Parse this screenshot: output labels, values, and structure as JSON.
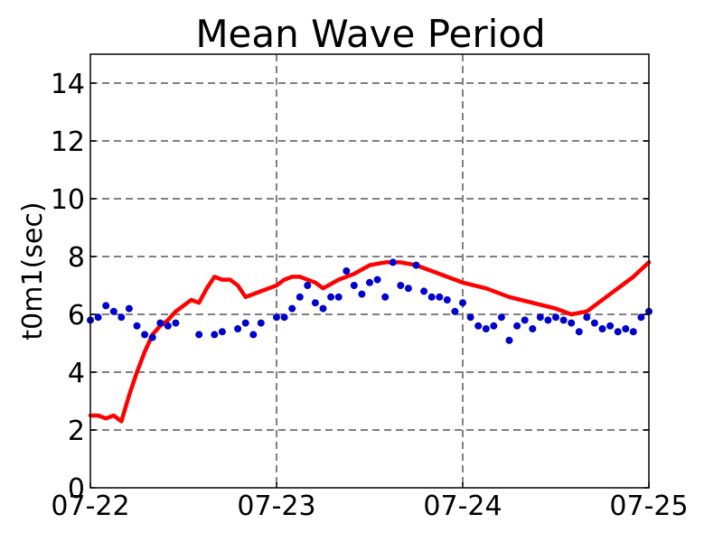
{
  "chart_data": {
    "type": "line",
    "title": "Mean Wave Period",
    "ylabel": "t0m1(sec)",
    "xlabel": "",
    "x_ticks": [
      "07-22",
      "07-23",
      "07-24",
      "07-25"
    ],
    "xlim": [
      "07-22 00:00",
      "07-25 00:00"
    ],
    "ylim": [
      0,
      15
    ],
    "y_ticks": [
      0,
      2,
      4,
      6,
      8,
      10,
      12,
      14
    ],
    "grid": true,
    "colors": {
      "model": "#ff0000",
      "observed": "#0000cc"
    },
    "series": [
      {
        "style": "line",
        "x": [
          "07-22 00:00",
          "07-22 01:00",
          "07-22 02:00",
          "07-22 03:00",
          "07-22 04:00",
          "07-22 05:00",
          "07-22 06:00",
          "07-22 07:00",
          "07-22 08:00",
          "07-22 09:00",
          "07-22 10:00",
          "07-22 11:00",
          "07-22 12:00",
          "07-22 13:00",
          "07-22 14:00",
          "07-22 15:00",
          "07-22 16:00",
          "07-22 17:00",
          "07-22 18:00",
          "07-22 19:00",
          "07-22 20:00",
          "07-22 21:00",
          "07-22 22:00",
          "07-22 23:00",
          "07-23 00:00",
          "07-23 01:00",
          "07-23 02:00",
          "07-23 03:00",
          "07-23 05:00",
          "07-23 06:00",
          "07-23 08:00",
          "07-23 10:00",
          "07-23 12:00",
          "07-23 14:00",
          "07-23 16:00",
          "07-23 18:00",
          "07-23 20:00",
          "07-23 22:00",
          "07-24 00:00",
          "07-24 03:00",
          "07-24 06:00",
          "07-24 09:00",
          "07-24 12:00",
          "07-24 14:00",
          "07-24 16:00",
          "07-24 18:00",
          "07-24 20:00",
          "07-24 22:00",
          "07-25 00:00"
        ],
        "y": [
          2.5,
          2.5,
          2.4,
          2.5,
          2.3,
          3.2,
          4.0,
          4.7,
          5.3,
          5.6,
          5.8,
          6.1,
          6.3,
          6.5,
          6.4,
          6.9,
          7.3,
          7.2,
          7.2,
          7.0,
          6.6,
          6.7,
          6.8,
          6.9,
          7.0,
          7.2,
          7.3,
          7.3,
          7.1,
          6.9,
          7.2,
          7.4,
          7.7,
          7.8,
          7.8,
          7.7,
          7.5,
          7.3,
          7.1,
          6.9,
          6.6,
          6.4,
          6.2,
          6.0,
          6.1,
          6.5,
          6.9,
          7.3,
          7.8
        ]
      },
      {
        "style": "scatter",
        "x": [
          "07-22 00:00",
          "07-22 01:00",
          "07-22 02:00",
          "07-22 03:00",
          "07-22 04:00",
          "07-22 05:00",
          "07-22 06:00",
          "07-22 07:00",
          "07-22 08:00",
          "07-22 09:00",
          "07-22 10:00",
          "07-22 11:00",
          "07-22 14:00",
          "07-22 16:00",
          "07-22 17:00",
          "07-22 19:00",
          "07-22 20:00",
          "07-22 21:00",
          "07-22 22:00",
          "07-23 00:00",
          "07-23 01:00",
          "07-23 02:00",
          "07-23 03:00",
          "07-23 04:00",
          "07-23 05:00",
          "07-23 06:00",
          "07-23 07:00",
          "07-23 08:00",
          "07-23 09:00",
          "07-23 10:00",
          "07-23 11:00",
          "07-23 12:00",
          "07-23 13:00",
          "07-23 14:00",
          "07-23 15:00",
          "07-23 16:00",
          "07-23 17:00",
          "07-23 18:00",
          "07-23 19:00",
          "07-23 20:00",
          "07-23 21:00",
          "07-23 22:00",
          "07-23 23:00",
          "07-24 00:00",
          "07-24 01:00",
          "07-24 02:00",
          "07-24 03:00",
          "07-24 04:00",
          "07-24 05:00",
          "07-24 06:00",
          "07-24 07:00",
          "07-24 08:00",
          "07-24 09:00",
          "07-24 10:00",
          "07-24 11:00",
          "07-24 12:00",
          "07-24 13:00",
          "07-24 14:00",
          "07-24 15:00",
          "07-24 16:00",
          "07-24 17:00",
          "07-24 18:00",
          "07-24 19:00",
          "07-24 20:00",
          "07-24 21:00",
          "07-24 22:00",
          "07-24 23:00",
          "07-25 00:00"
        ],
        "y": [
          5.8,
          5.9,
          6.3,
          6.1,
          5.9,
          6.2,
          5.6,
          5.3,
          5.2,
          5.7,
          5.6,
          5.7,
          5.3,
          5.3,
          5.4,
          5.5,
          5.7,
          5.3,
          5.7,
          5.9,
          5.9,
          6.2,
          6.6,
          7.0,
          6.4,
          6.2,
          6.6,
          6.6,
          7.5,
          7.0,
          6.7,
          7.1,
          7.2,
          6.6,
          7.8,
          7.0,
          6.9,
          7.7,
          6.8,
          6.6,
          6.6,
          6.5,
          6.1,
          6.4,
          5.9,
          5.6,
          5.5,
          5.6,
          5.9,
          5.1,
          5.6,
          5.8,
          5.5,
          5.9,
          5.8,
          5.9,
          5.8,
          5.7,
          5.4,
          5.9,
          5.7,
          5.5,
          5.6,
          5.4,
          5.5,
          5.4,
          5.9,
          6.1
        ]
      }
    ]
  }
}
